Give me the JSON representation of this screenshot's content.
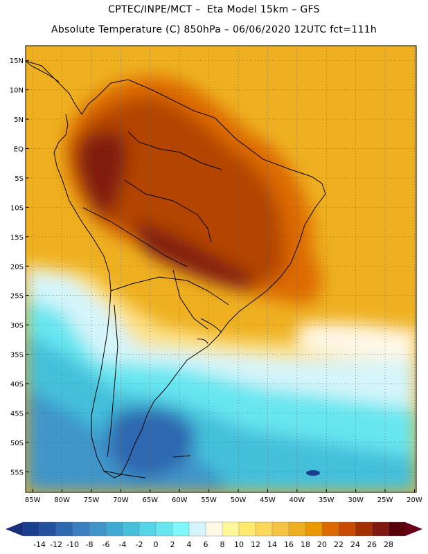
{
  "header": {
    "line1": "CPTEC/INPE/MCT –  Eta Model 15km – GFS",
    "line2": "Absolute Temperature (C) 850hPa – 06/06/2020 12UTC fct=111h"
  },
  "axes": {
    "lat_labels": [
      "15N",
      "10N",
      "5N",
      "EQ",
      "5S",
      "10S",
      "15S",
      "20S",
      "25S",
      "30S",
      "35S",
      "40S",
      "45S",
      "50S",
      "55S"
    ],
    "lon_labels": [
      "85W",
      "80W",
      "75W",
      "70W",
      "65W",
      "60W",
      "55W",
      "50W",
      "45W",
      "40W",
      "35W",
      "30W",
      "25W",
      "20W"
    ],
    "lat_values": [
      15,
      10,
      5,
      0,
      -5,
      -10,
      -15,
      -20,
      -25,
      -30,
      -35,
      -40,
      -45,
      -50,
      -55
    ],
    "lon_values": [
      -85,
      -80,
      -75,
      -70,
      -65,
      -60,
      -55,
      -50,
      -45,
      -40,
      -35,
      -30,
      -25,
      -20
    ]
  },
  "colorbar": {
    "labels": [
      "-14",
      "-12",
      "-10",
      "-8",
      "-6",
      "-4",
      "-2",
      "0",
      "2",
      "4",
      "6",
      "8",
      "10",
      "12",
      "14",
      "16",
      "18",
      "20",
      "22",
      "24",
      "26",
      "28"
    ],
    "colors": [
      "#1a3f8f",
      "#21519f",
      "#2d68b0",
      "#3a7fbf",
      "#3f95c9",
      "#40aad2",
      "#45c0db",
      "#55d5e6",
      "#68e6f0",
      "#80f7fa",
      "#d4f5fb",
      "#fff8e6",
      "#fff799",
      "#ffe970",
      "#fcd85a",
      "#f5c445",
      "#eeb020",
      "#ea9a00",
      "#dd6a00",
      "#c84a00",
      "#a23000",
      "#801a10",
      "#5a000a"
    ],
    "low_end_color": "#1a2f78",
    "high_end_color": "#6a0018"
  },
  "palette": {
    "ocean_warm": "#eeb020",
    "amazon_hot": "#b34500",
    "core_hot": "#801a10",
    "mid_lat": "#fce28a",
    "cool": "#d4f5fb",
    "cold": "#55d5e6",
    "coldest": "#2d68b0"
  }
}
